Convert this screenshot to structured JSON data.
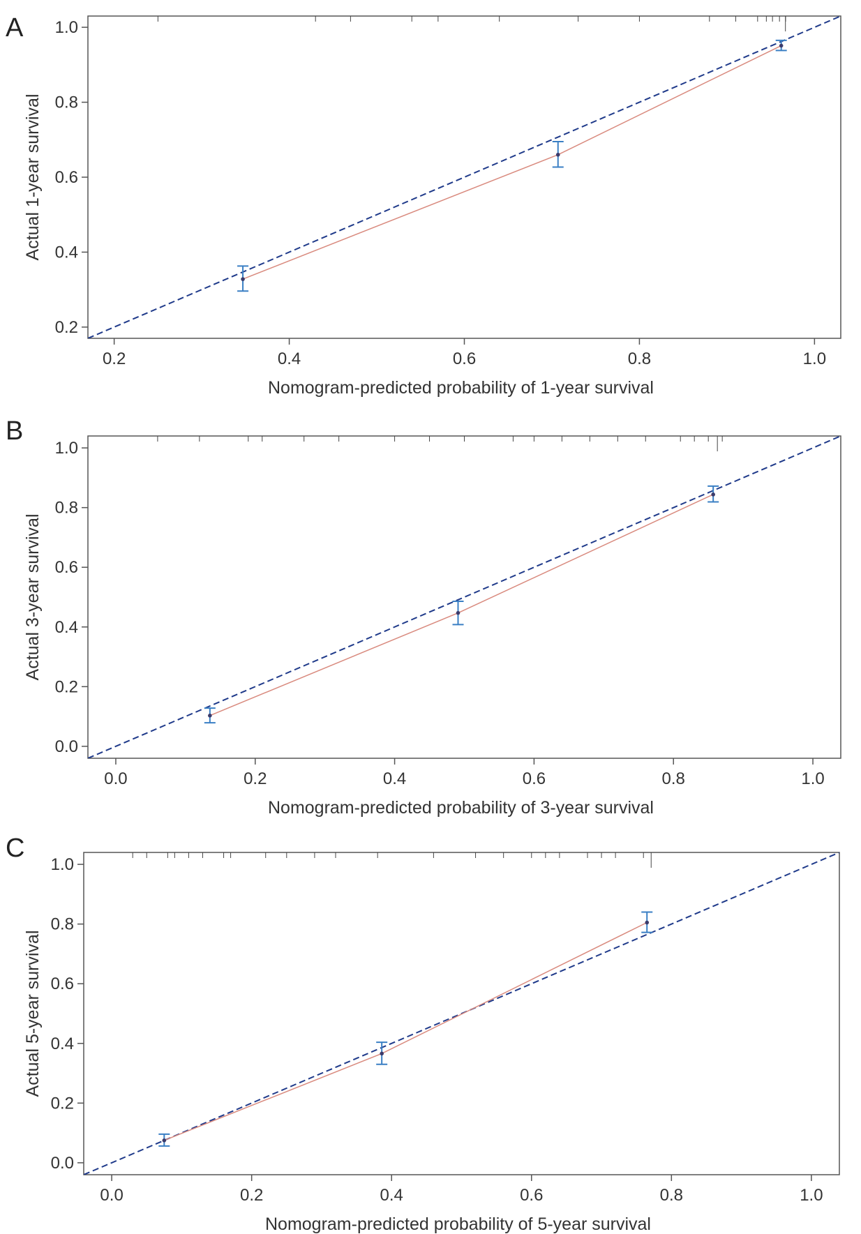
{
  "colors": {
    "ideal_line": "#1f3a8a",
    "calibration_line": "#d98a7e",
    "error_bar": "#3a7fc4",
    "point": "#3b3b6b",
    "frame": "#555555",
    "rug": "#444444"
  },
  "chart_data": [
    {
      "type": "line",
      "panel_label": "A",
      "xlabel": "Nomogram-predicted probability of 1-year survival",
      "ylabel": "Actual 1-year survival",
      "xlim": [
        0.17,
        1.03
      ],
      "ylim": [
        0.17,
        1.03
      ],
      "xticks": [
        "0.2",
        "0.4",
        "0.6",
        "0.8",
        "1.0"
      ],
      "yticks": [
        "0.2",
        "0.4",
        "0.6",
        "0.8",
        "1.0"
      ],
      "grid": false,
      "ideal_line": true,
      "points": [
        {
          "x": 0.347,
          "y": 0.328,
          "lower": 0.296,
          "upper": 0.363
        },
        {
          "x": 0.707,
          "y": 0.66,
          "lower": 0.627,
          "upper": 0.695
        },
        {
          "x": 0.962,
          "y": 0.951,
          "lower": 0.938,
          "upper": 0.965
        }
      ],
      "rug_x": [
        0.25,
        0.43,
        0.47,
        0.54,
        0.57,
        0.64,
        0.73,
        0.8,
        0.88,
        0.91,
        0.935,
        0.945,
        0.952,
        0.96,
        0.967
      ]
    },
    {
      "type": "line",
      "panel_label": "B",
      "xlabel": "Nomogram-predicted probability of 3-year survival",
      "ylabel": "Actual 3-year survival",
      "xlim": [
        -0.04,
        1.04
      ],
      "ylim": [
        -0.04,
        1.04
      ],
      "xticks": [
        "0.0",
        "0.2",
        "0.4",
        "0.6",
        "0.8",
        "1.0"
      ],
      "yticks": [
        "0.0",
        "0.2",
        "0.4",
        "0.6",
        "0.8",
        "1.0"
      ],
      "grid": false,
      "ideal_line": true,
      "points": [
        {
          "x": 0.135,
          "y": 0.103,
          "lower": 0.079,
          "upper": 0.128
        },
        {
          "x": 0.491,
          "y": 0.447,
          "lower": 0.408,
          "upper": 0.486
        },
        {
          "x": 0.857,
          "y": 0.844,
          "lower": 0.819,
          "upper": 0.872
        }
      ],
      "rug_x": [
        0.06,
        0.12,
        0.19,
        0.21,
        0.27,
        0.32,
        0.4,
        0.45,
        0.5,
        0.57,
        0.6,
        0.64,
        0.68,
        0.72,
        0.76,
        0.81,
        0.83,
        0.85,
        0.87
      ]
    },
    {
      "type": "line",
      "panel_label": "C",
      "xlabel": "Nomogram-predicted probability of 5-year survival",
      "ylabel": "Actual 5-year survival",
      "xlim": [
        -0.04,
        1.04
      ],
      "ylim": [
        -0.04,
        1.04
      ],
      "xticks": [
        "0.0",
        "0.2",
        "0.4",
        "0.6",
        "0.8",
        "1.0"
      ],
      "yticks": [
        "0.0",
        "0.2",
        "0.4",
        "0.6",
        "0.8",
        "1.0"
      ],
      "grid": false,
      "ideal_line": true,
      "points": [
        {
          "x": 0.075,
          "y": 0.075,
          "lower": 0.056,
          "upper": 0.096
        },
        {
          "x": 0.386,
          "y": 0.366,
          "lower": 0.33,
          "upper": 0.404
        },
        {
          "x": 0.765,
          "y": 0.805,
          "lower": 0.772,
          "upper": 0.84
        }
      ],
      "rug_x": [
        0.03,
        0.05,
        0.08,
        0.09,
        0.11,
        0.13,
        0.16,
        0.17,
        0.22,
        0.25,
        0.29,
        0.32,
        0.38,
        0.46,
        0.52,
        0.56,
        0.6,
        0.62,
        0.64,
        0.68,
        0.7,
        0.72,
        0.76
      ]
    }
  ]
}
